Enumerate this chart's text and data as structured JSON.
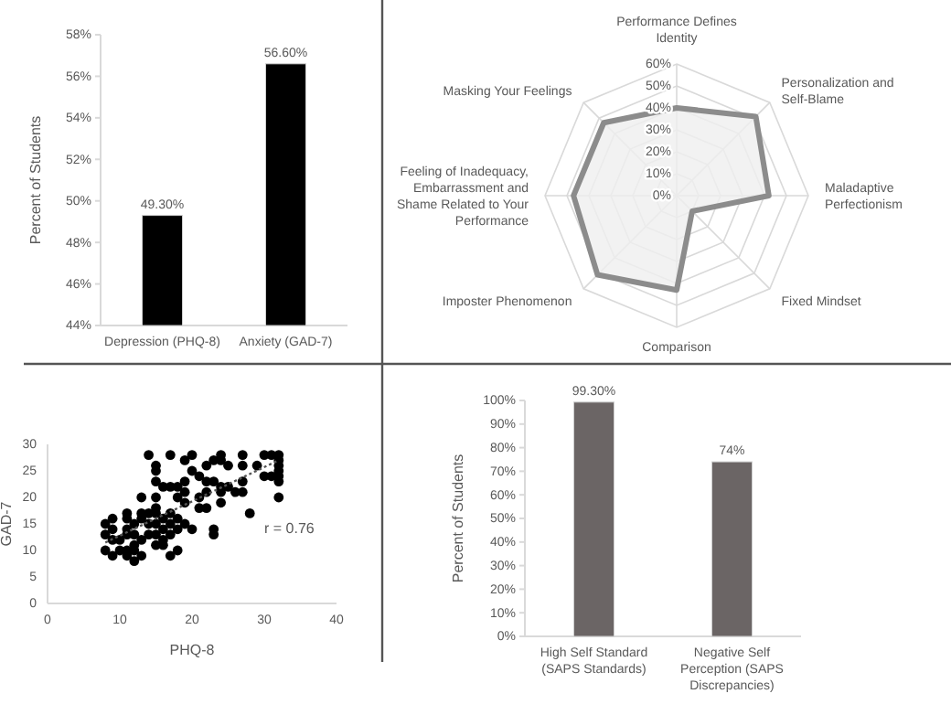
{
  "chart_data": [
    {
      "type": "bar",
      "ylabel": "Percent of Students",
      "categories": [
        "Depression (PHQ-8)",
        "Anxiety (GAD-7)"
      ],
      "values": [
        49.3,
        56.6
      ],
      "value_labels": [
        "49.30%",
        "56.60%"
      ],
      "color": "#000000",
      "ylim": [
        44,
        58
      ],
      "yticks": [
        {
          "value": 44,
          "label": "44%"
        },
        {
          "value": 46,
          "label": "46%"
        },
        {
          "value": 48,
          "label": "48%"
        },
        {
          "value": 50,
          "label": "50%"
        },
        {
          "value": 52,
          "label": "52%"
        },
        {
          "value": 54,
          "label": "54%"
        },
        {
          "value": 56,
          "label": "56%"
        },
        {
          "value": 58,
          "label": "58%"
        }
      ],
      "grid": false
    },
    {
      "type": "radar",
      "categories": [
        "Performance Defines Identity",
        "Personalization and Self-Blame",
        "Maladaptive Perfectionism",
        "Fixed Mindset",
        "Comparison",
        "Imposter Phenomenon",
        "Feeling of Inadequacy, Embarrassment and Shame Related to Your Performance",
        "Masking Your Feelings"
      ],
      "series": [
        {
          "color": "#8c8c8c",
          "values": [
            40,
            51,
            42,
            10,
            43,
            51,
            47,
            47
          ]
        }
      ],
      "ylim": [
        0,
        60
      ],
      "yticks": [
        {
          "value": 0,
          "label": "0%"
        },
        {
          "value": 10,
          "label": "10%"
        },
        {
          "value": 20,
          "label": "20%"
        },
        {
          "value": 30,
          "label": "30%"
        },
        {
          "value": 40,
          "label": "40%"
        },
        {
          "value": 50,
          "label": "50%"
        },
        {
          "value": 60,
          "label": "60%"
        }
      ],
      "grid": true
    },
    {
      "type": "scatter",
      "xlabel": "PHQ-8",
      "ylabel": "GAD-7",
      "xlim": [
        0,
        40
      ],
      "ylim": [
        0,
        30
      ],
      "xticks": [
        0,
        10,
        20,
        30,
        40
      ],
      "yticks": [
        0,
        5,
        10,
        15,
        20,
        25,
        30
      ],
      "annotations": [
        "r = 0.76"
      ],
      "grid": false,
      "series": [
        {
          "type": "scatter",
          "color": "#000000",
          "marker": "circle",
          "x": [
            8,
            8,
            8,
            9,
            9,
            9,
            9,
            10,
            10,
            11,
            11,
            11,
            11,
            11,
            11,
            12,
            12,
            12,
            12,
            12,
            13,
            13,
            13,
            13,
            13,
            14,
            14,
            14,
            14,
            15,
            15,
            15,
            15,
            15,
            15,
            15,
            15,
            15,
            16,
            16,
            16,
            16,
            16,
            17,
            17,
            17,
            17,
            17,
            17,
            18,
            18,
            18,
            18,
            18,
            19,
            19,
            19,
            19,
            19,
            20,
            20,
            20,
            21,
            21,
            21,
            22,
            22,
            22,
            22,
            23,
            23,
            23,
            23,
            24,
            24,
            24,
            24,
            24,
            25,
            25,
            26,
            27,
            27,
            27,
            27,
            28,
            29,
            30,
            30,
            31,
            31,
            32,
            32,
            32,
            32,
            32,
            32,
            32
          ],
          "values": [
            15,
            13,
            10,
            16,
            14,
            12,
            9,
            12,
            10,
            17,
            16,
            14,
            13,
            10,
            9,
            15,
            13,
            11,
            10,
            8,
            17,
            16,
            12,
            9,
            20,
            28,
            17,
            15,
            13,
            26,
            25,
            23,
            20,
            18,
            17,
            15,
            13,
            11,
            22,
            16,
            14,
            12,
            11,
            28,
            22,
            17,
            15,
            13,
            9,
            22,
            20,
            16,
            14,
            10,
            27,
            23,
            21,
            19,
            15,
            28,
            25,
            14,
            24,
            20,
            18,
            26,
            23,
            21,
            18,
            27,
            23,
            14,
            13,
            28,
            27,
            22,
            21,
            19,
            26,
            22,
            21,
            28,
            26,
            23,
            21,
            17,
            26,
            28,
            24,
            28,
            24,
            28,
            27,
            26,
            25,
            24,
            23,
            20
          ]
        },
        {
          "type": "line",
          "color": "#555555",
          "line_style": "dotted",
          "x": [
            8,
            32
          ],
          "values": [
            11.5,
            27
          ]
        }
      ]
    },
    {
      "type": "bar",
      "ylabel": "Percent of Students",
      "categories": [
        "High Self Standard (SAPS Standards)",
        "Negative Self Perception (SAPS Discrepancies)"
      ],
      "values": [
        99.3,
        74
      ],
      "value_labels": [
        "99.30%",
        "74%"
      ],
      "color": "#6b6565",
      "ylim": [
        0,
        100
      ],
      "yticks": [
        {
          "value": 0,
          "label": "0%"
        },
        {
          "value": 10,
          "label": "10%"
        },
        {
          "value": 20,
          "label": "20%"
        },
        {
          "value": 30,
          "label": "30%"
        },
        {
          "value": 40,
          "label": "40%"
        },
        {
          "value": 50,
          "label": "50%"
        },
        {
          "value": 60,
          "label": "60%"
        },
        {
          "value": 70,
          "label": "70%"
        },
        {
          "value": 80,
          "label": "80%"
        },
        {
          "value": 90,
          "label": "90%"
        },
        {
          "value": 100,
          "label": "100%"
        }
      ],
      "grid": false
    }
  ]
}
